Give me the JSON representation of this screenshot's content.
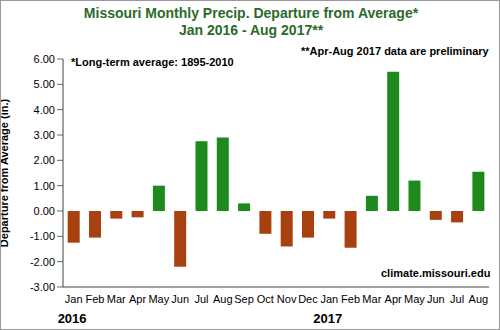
{
  "chart_data": {
    "type": "bar",
    "title": "Missouri Monthly Precip. Departure from Average*",
    "subtitle": "Jan 2016 - Aug 2017**",
    "ylabel": "Departure from Average (in.)",
    "annotations": [
      "*Long-term average: 1895-2010",
      "**Apr-Aug 2017 data are preliminary",
      "climate.missouri.edu",
      "2016",
      "2017"
    ],
    "categories": [
      "Jan",
      "Feb",
      "Mar",
      "Apr",
      "May",
      "Jun",
      "Jul",
      "Aug",
      "Sep",
      "Oct",
      "Nov",
      "Dec",
      "Jan",
      "Feb",
      "Mar",
      "Apr",
      "May",
      "Jun",
      "Jul",
      "Aug"
    ],
    "values": [
      -1.25,
      -1.05,
      -0.3,
      -0.25,
      1.0,
      -2.2,
      2.75,
      2.9,
      0.3,
      -0.9,
      -1.4,
      -1.05,
      -0.3,
      -1.45,
      0.6,
      5.5,
      1.2,
      -0.35,
      -0.45,
      1.55
    ],
    "colors": [
      "#a8400f",
      "#a8400f",
      "#a8400f",
      "#a8400f",
      "#1e8a1e",
      "#a8400f",
      "#1e8a1e",
      "#1e8a1e",
      "#1e8a1e",
      "#a8400f",
      "#a8400f",
      "#a8400f",
      "#a8400f",
      "#a8400f",
      "#1e8a1e",
      "#1e8a1e",
      "#1e8a1e",
      "#a8400f",
      "#a8400f",
      "#1e8a1e"
    ],
    "ylim": [
      -3,
      6
    ],
    "yticks": [
      {
        "value": -3,
        "label": "-3.00"
      },
      {
        "value": -2,
        "label": "-2.00"
      },
      {
        "value": -1,
        "label": "-1.00"
      },
      {
        "value": 0,
        "label": "0.00"
      },
      {
        "value": 1,
        "label": "1.00"
      },
      {
        "value": 2,
        "label": "2.00"
      },
      {
        "value": 3,
        "label": "3.00"
      },
      {
        "value": 4,
        "label": "4.00"
      },
      {
        "value": 5,
        "label": "5.00"
      },
      {
        "value": 6,
        "label": "6.00"
      }
    ],
    "grid": false
  }
}
